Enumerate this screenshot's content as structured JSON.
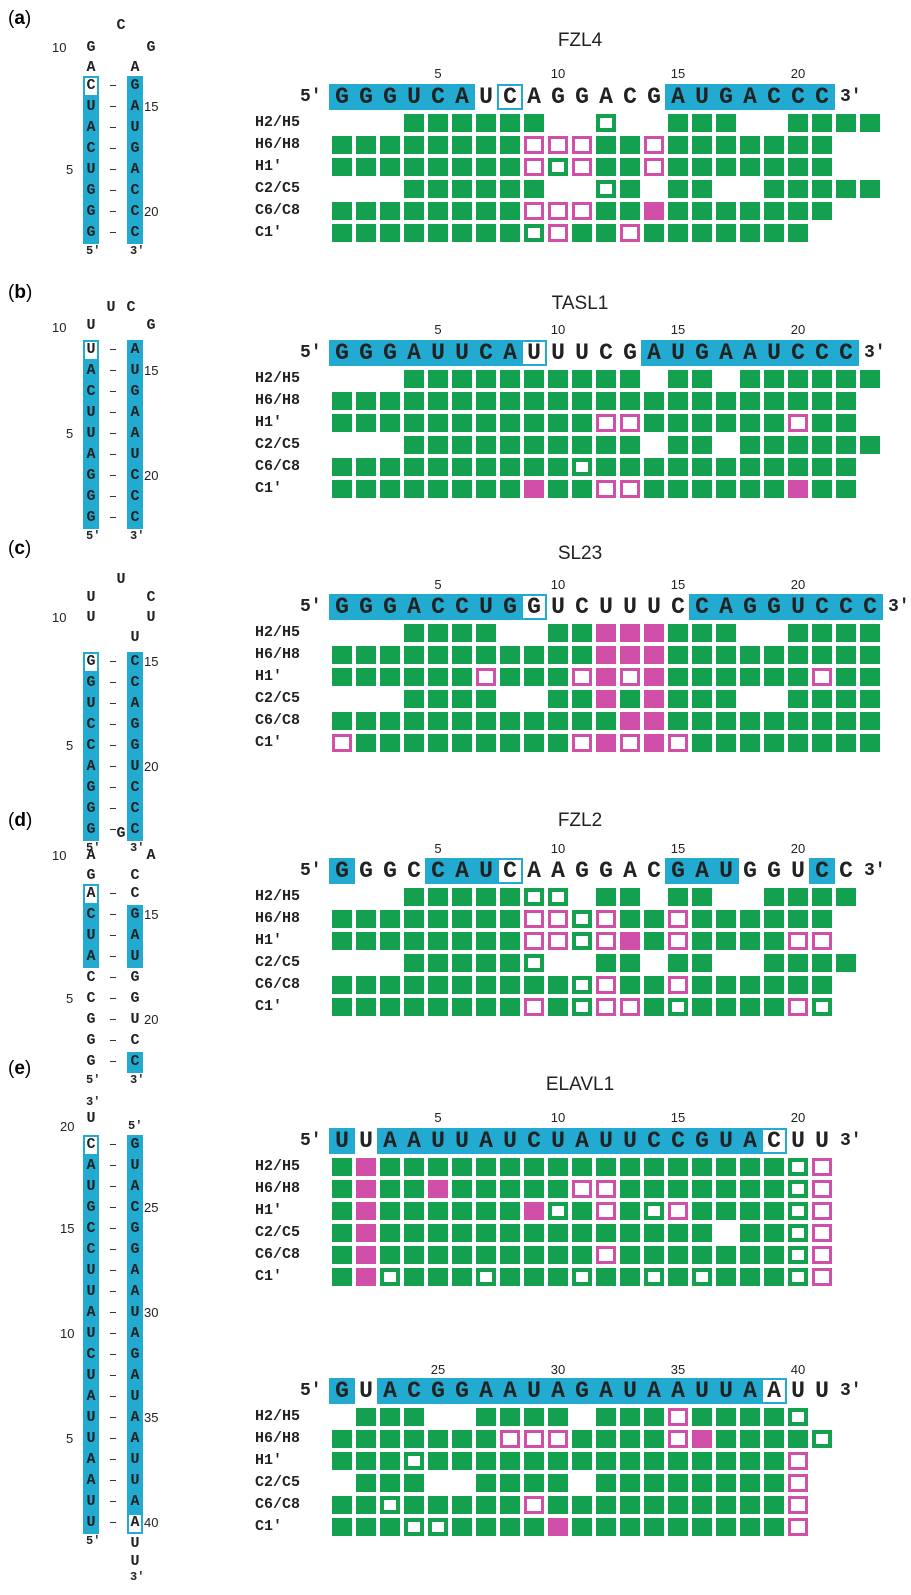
{
  "colors": {
    "stem": "#22aad1",
    "assigned": "#13a14f",
    "shifted": "#cf4fa9"
  },
  "row_labels": [
    "H2/H5",
    "H6/H8",
    "H1′",
    "C2/C5",
    "C6/C8",
    "C1′"
  ],
  "legend_codes": {
    ".": "not shown",
    "G": "green filled",
    "M": "magenta filled",
    "g": "green open",
    "m": "magenta open"
  },
  "panels": [
    {
      "id": "a",
      "letter": "a",
      "title": "FZL4",
      "sequence": "GGGUCAUCAGGACGAUGACCC",
      "five_prime": "5′",
      "three_prime": "3′",
      "tick_labels": [
        "5",
        "10",
        "15",
        "20"
      ],
      "highlight": [
        1,
        2,
        3,
        4,
        5,
        6,
        15,
        16,
        17,
        18,
        19,
        20,
        21
      ],
      "outlined": [
        8
      ],
      "rows": [
        "...GGGGGG..g..GGG..GGGG",
        "GGGGGGGGmmmGGmGGGGGGG",
        "GGGGGGGGmgmGGmGGGGGGG",
        "...GGGGGG..gG.GG..GGGGG",
        "GGGGGGGGmmmGGMGGGGGGG",
        "GGGGGGGGgmGGmGGGGGGG"
      ],
      "secondary": {
        "loop": [
          "G",
          "A",
          "C",
          "G",
          "A"
        ],
        "loop_label": "10",
        "left": [
          "C",
          "U",
          "A",
          "C",
          "U",
          "G",
          "G",
          "G"
        ],
        "right": [
          "G",
          "A",
          "U",
          "G",
          "A",
          "C",
          "C",
          "C"
        ],
        "left_numbers": {
          "4": "5"
        },
        "right_numbers": {
          "1": "15",
          "6": "20"
        },
        "five_prime": "5′",
        "three_prime": "3′"
      }
    },
    {
      "id": "b",
      "letter": "b",
      "title": "TASL1",
      "sequence": "GGGAUUCAUUUCGAUGAAUCCC",
      "five_prime": "5′",
      "three_prime": "3′",
      "tick_labels": [
        "5",
        "10",
        "15",
        "20"
      ],
      "highlight": [
        1,
        2,
        3,
        4,
        5,
        6,
        7,
        8,
        14,
        15,
        16,
        17,
        18,
        19,
        20,
        21,
        22
      ],
      "outlined": [
        9
      ],
      "rows": [
        "...GGGGGGGGGG.GG.GGGGGG",
        "GGGGGGGGGGGGGGGGGGGGGG",
        "GGGGGGGGGGGmmGGGGGGmGG",
        "...GGGGGGGGGG.GG.GGGGGG",
        "GGGGGGGGGGgGGGGGGGGGGG",
        "GGGGGGGGMGGmmGGGGGGMGG"
      ],
      "secondary": {
        "loop": [
          "U",
          "U",
          "C",
          "G"
        ],
        "loop_label": "10",
        "left": [
          "U",
          "A",
          "C",
          "U",
          "U",
          "A",
          "G",
          "G",
          "G"
        ],
        "right": [
          "A",
          "U",
          "G",
          "A",
          "A",
          "U",
          "C",
          "C",
          "C"
        ],
        "left_numbers": {
          "4": "5"
        },
        "right_numbers": {
          "1": "15",
          "6": "20"
        },
        "five_prime": "5′",
        "three_prime": "3′"
      }
    },
    {
      "id": "c",
      "letter": "c",
      "title": "SL23",
      "sequence": "GGGACCUGGUCUUUCCAGGUCCC",
      "five_prime": "5′",
      "three_prime": "3′",
      "tick_labels": [
        "5",
        "10",
        "15",
        "20"
      ],
      "highlight": [
        1,
        2,
        3,
        4,
        5,
        6,
        7,
        8,
        16,
        17,
        18,
        19,
        20,
        21,
        22,
        23
      ],
      "outlined": [
        9
      ],
      "rows": [
        "...GGGG..GGMMMGGG..GGGG",
        "GGGGGGGGGGGMMMGGGGGGGGG",
        "GGGGGGmGGGmMmMGGGGGGmGG",
        "...GGGG..GGMGMGGG..GGGG",
        "GGGGGGGGGGGGMMGGGGGGGGG",
        "mGGGGGGGGGmMmMmGGGGGGGG"
      ],
      "secondary": {
        "loop": [
          "U",
          "U",
          "U",
          "C",
          "U",
          "U"
        ],
        "loop_label": "10",
        "left": [
          "G",
          "G",
          "U",
          "C",
          "C",
          "A",
          "G",
          "G",
          "G"
        ],
        "right": [
          "C",
          "C",
          "A",
          "G",
          "G",
          "U",
          "C",
          "C",
          "C"
        ],
        "left_numbers": {
          "4": "5"
        },
        "right_numbers": {
          "0": "15",
          "5": "20"
        },
        "five_prime": "5′",
        "three_prime": "3′"
      }
    },
    {
      "id": "d",
      "letter": "d",
      "title": "FZL2",
      "sequence": "GGGCCAUCAAGGACGAUGGUCC",
      "five_prime": "5′",
      "three_prime": "3′",
      "tick_labels": [
        "5",
        "10",
        "15",
        "20"
      ],
      "highlight": [
        1,
        5,
        6,
        7,
        15,
        16,
        17,
        21
      ],
      "outlined": [
        8
      ],
      "rows": [
        "...GGGGGgg.GG.GG..GGGG",
        "GGGGGGGGmmgmGGmGGGGGG",
        "GGGGGGGGmmgmMGmGGGGmm",
        "...GGGGGg..GG.GG..GGGG",
        "GGGGGGGGGGgmGGmGGGGGG",
        "GGGGGGGGmGgmmGgGGGGmg"
      ],
      "secondary": {
        "loop": [
          "A",
          "G",
          "G",
          "A",
          "C"
        ],
        "loop_label": "10",
        "left": [
          "A",
          "C",
          "U",
          "A",
          "C",
          "C",
          "G",
          "G",
          "G"
        ],
        "right": [
          "C",
          "G",
          "A",
          "U",
          "G",
          "G",
          "U",
          "C",
          "C"
        ],
        "left_numbers": {
          "5": "5"
        },
        "right_numbers": {
          "1": "15",
          "6": "20"
        },
        "five_prime": "5′",
        "three_prime": "3′"
      }
    },
    {
      "id": "e1",
      "letter": "e",
      "title": "ELAVL1",
      "sequence": "UUAAUUAUCUAUUCCGUACUU",
      "five_prime": "5′",
      "three_prime": "3′",
      "tick_labels": [
        "5",
        "10",
        "15",
        "20"
      ],
      "highlight": [
        1,
        3,
        4,
        5,
        6,
        7,
        8,
        9,
        10,
        11,
        12,
        13,
        14,
        15,
        16,
        17,
        18
      ],
      "outlined": [
        19
      ],
      "rows": [
        "GMGGGGGGGGGGGGGGGGGgm",
        "GMGGMGGGGGmmGGGGGGGgm",
        "GMGGGGGGMgGmGgmGGGGgm",
        "GMGGGGGGGGGGGGGG.GGgm",
        "GMGGGGGGGGGmGGGGGGGgm",
        "GMgGGGgGGGgGGgGgGGGgm"
      ],
      "secondary": {
        "loop": [],
        "loop_label": "",
        "left": [
          "C",
          "A",
          "U",
          "G",
          "C",
          "C",
          "U",
          "U",
          "A",
          "U",
          "C",
          "U",
          "A",
          "U",
          "U",
          "A",
          "A",
          "U",
          "U"
        ],
        "right": [
          "G",
          "U",
          "A",
          "C",
          "G",
          "G",
          "A",
          "A",
          "U",
          "A",
          "G",
          "A",
          "U",
          "A",
          "A",
          "U",
          "U",
          "A",
          "A"
        ],
        "left_numbers": {
          "4": "15",
          "9": "10",
          "14": "5"
        },
        "right_numbers": {
          "3": "25",
          "8": "30",
          "13": "35",
          "18": "40"
        },
        "top_label": "20",
        "top_nt": [
          "3′",
          "U"
        ],
        "bottom_nt": [
          "U",
          "U",
          "3′"
        ],
        "five_prime": "5′",
        "three_prime": "3′"
      }
    },
    {
      "id": "e2",
      "letter": "",
      "title": "",
      "sequence": "GUACGGAAUAGAUAAUUAAUU",
      "five_prime": "5′",
      "three_prime": "3′",
      "tick_labels": [
        "25",
        "30",
        "35",
        "40"
      ],
      "highlight": [
        1,
        3,
        4,
        5,
        6,
        7,
        8,
        9,
        10,
        11,
        12,
        13,
        14,
        15,
        16,
        17,
        18
      ],
      "outlined": [
        19
      ],
      "rows": [
        ".GGG..GGGG.GGGmGGGGg",
        "GGGGGGGmmmGGGGmMGGGGg",
        "GGGgGGGGGGGGGGGGGGGm",
        ".GGG..GGGG.GGGGGGGGm",
        "GGgGGGGGmGGGGGGGGGGm",
        "GGGggGGGGMGGGGGGGGGm"
      ],
      "secondary": null
    }
  ]
}
